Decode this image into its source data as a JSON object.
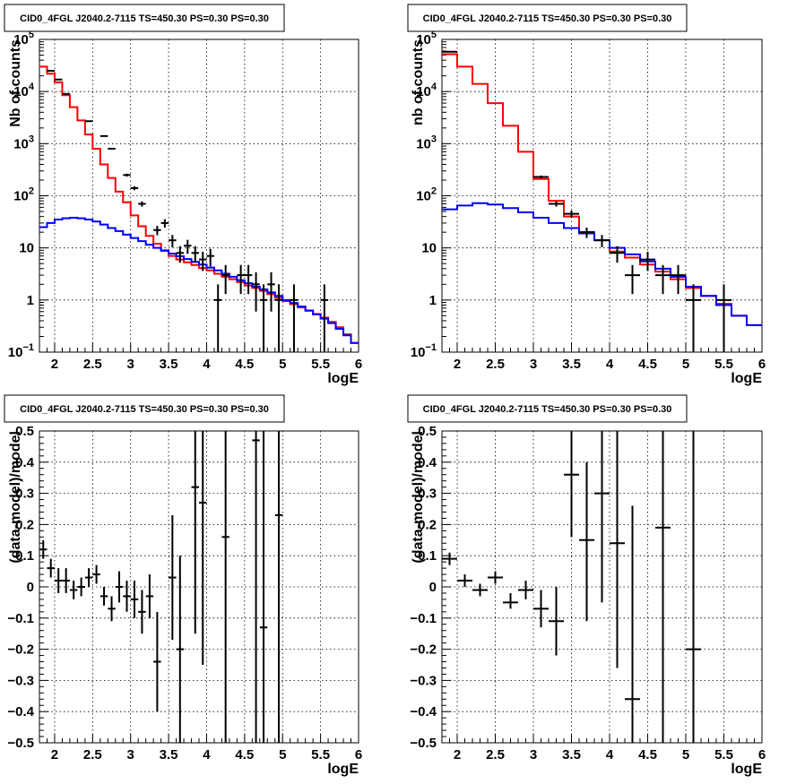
{
  "chart_data": [
    {
      "type": "histogram-log",
      "title": "CID0_4FGL J2040.2-7115 TS=450.30 PS=0.30 PS=0.30",
      "xlabel": "logE",
      "ylabel": "Nb of counts",
      "xlim": [
        1.8,
        6.0
      ],
      "ylim": [
        0.1,
        100000
      ],
      "log_y": true,
      "grid": true,
      "xticks": [
        2,
        2.5,
        3,
        3.5,
        4,
        4.5,
        5,
        5.5,
        6
      ],
      "xtick_labels": [
        "2",
        "2.5",
        "3",
        "3.5",
        "4",
        "4.5",
        "5",
        "5.5",
        "6"
      ],
      "yticks": [
        0.1,
        1,
        10,
        100,
        1000,
        10000,
        100000
      ],
      "ytick_labels": [
        {
          "base": "10",
          "exp": "−1"
        },
        {
          "base": "1",
          "exp": ""
        },
        {
          "base": "10",
          "exp": ""
        },
        {
          "base": "10",
          "exp": "2"
        },
        {
          "base": "10",
          "exp": "3"
        },
        {
          "base": "10",
          "exp": "4"
        },
        {
          "base": "10",
          "exp": "5"
        }
      ],
      "bin_edges": [
        1.8,
        1.9,
        2.0,
        2.1,
        2.2,
        2.3,
        2.4,
        2.5,
        2.6,
        2.7,
        2.8,
        2.9,
        3.0,
        3.1,
        3.2,
        3.3,
        3.4,
        3.5,
        3.6,
        3.7,
        3.8,
        3.9,
        4.0,
        4.1,
        4.2,
        4.3,
        4.4,
        4.5,
        4.6,
        4.7,
        4.8,
        4.9,
        5.0,
        5.1,
        5.2,
        5.3,
        5.4,
        5.5,
        5.6,
        5.7,
        5.8,
        5.9,
        6.0
      ],
      "series": [
        {
          "color": "#ff0000",
          "values": [
            30000,
            22000,
            15000,
            8500,
            5000,
            2800,
            1500,
            800,
            400,
            220,
            120,
            75,
            42,
            26,
            17,
            12,
            9,
            7,
            6,
            5.3,
            4.7,
            4.1,
            3.7,
            3.2,
            2.8,
            2.5,
            2.2,
            1.9,
            1.7,
            1.5,
            1.3,
            1.1,
            0.95,
            0.83,
            0.72,
            0.62,
            0.54,
            0.46,
            0.38,
            0.3,
            0.22,
            0.15
          ]
        },
        {
          "color": "#0000ff",
          "values": [
            25,
            30,
            35,
            37,
            38,
            37,
            35,
            32,
            28,
            24,
            21,
            18,
            15.5,
            13.5,
            11.5,
            10,
            8.8,
            7.8,
            6.9,
            6.1,
            5.4,
            4.8,
            4.2,
            3.7,
            3.2,
            2.8,
            2.4,
            2.1,
            1.8,
            1.6,
            1.4,
            1.2,
            1.0,
            0.88,
            0.75,
            0.63,
            0.53,
            0.44,
            0.36,
            0.28,
            0.21,
            0.15
          ]
        }
      ],
      "data_points": [
        {
          "x": 1.95,
          "xerr": 0.05,
          "y": 25000,
          "ylo": 24840,
          "yhi": 25160
        },
        {
          "x": 2.05,
          "xerr": 0.05,
          "y": 17000,
          "ylo": 16870,
          "yhi": 17130
        },
        {
          "x": 2.15,
          "xerr": 0.05,
          "y": 9000,
          "ylo": 8905,
          "yhi": 9095
        },
        {
          "x": 2.45,
          "xerr": 0.05,
          "y": 2700,
          "ylo": 2648,
          "yhi": 2752
        },
        {
          "x": 2.65,
          "xerr": 0.05,
          "y": 1400,
          "ylo": 1363,
          "yhi": 1437
        },
        {
          "x": 2.75,
          "xerr": 0.05,
          "y": 800,
          "ylo": 772,
          "yhi": 828
        },
        {
          "x": 2.95,
          "xerr": 0.05,
          "y": 250,
          "ylo": 234,
          "yhi": 266
        },
        {
          "x": 3.05,
          "xerr": 0.05,
          "y": 140,
          "ylo": 128,
          "yhi": 152
        },
        {
          "x": 3.15,
          "xerr": 0.05,
          "y": 70,
          "ylo": 62,
          "yhi": 78
        },
        {
          "x": 3.35,
          "xerr": 0.05,
          "y": 22,
          "ylo": 17.5,
          "yhi": 26.5
        },
        {
          "x": 3.45,
          "xerr": 0.05,
          "y": 30,
          "ylo": 24.5,
          "yhi": 35.5
        },
        {
          "x": 3.55,
          "xerr": 0.05,
          "y": 14,
          "ylo": 10.3,
          "yhi": 17.7
        },
        {
          "x": 3.65,
          "xerr": 0.05,
          "y": 8,
          "ylo": 5.2,
          "yhi": 10.8
        },
        {
          "x": 3.75,
          "xerr": 0.05,
          "y": 11,
          "ylo": 7.7,
          "yhi": 14.3
        },
        {
          "x": 3.85,
          "xerr": 0.05,
          "y": 8,
          "ylo": 5.2,
          "yhi": 10.8
        },
        {
          "x": 3.95,
          "xerr": 0.05,
          "y": 6,
          "ylo": 3.6,
          "yhi": 8.4
        },
        {
          "x": 4.05,
          "xerr": 0.05,
          "y": 7,
          "ylo": 4.4,
          "yhi": 9.6
        },
        {
          "x": 4.15,
          "xerr": 0.05,
          "y": 1,
          "ylo": 0.1,
          "yhi": 2
        },
        {
          "x": 4.25,
          "xerr": 0.05,
          "y": 3,
          "ylo": 1.3,
          "yhi": 4.7
        },
        {
          "x": 4.45,
          "xerr": 0.05,
          "y": 3,
          "ylo": 1.3,
          "yhi": 4.7
        },
        {
          "x": 4.55,
          "xerr": 0.05,
          "y": 3,
          "ylo": 1.3,
          "yhi": 4.7
        },
        {
          "x": 4.65,
          "xerr": 0.05,
          "y": 2,
          "ylo": 0.6,
          "yhi": 3.4
        },
        {
          "x": 4.75,
          "xerr": 0.05,
          "y": 1,
          "ylo": 0.1,
          "yhi": 2
        },
        {
          "x": 4.85,
          "xerr": 0.05,
          "y": 2,
          "ylo": 0.6,
          "yhi": 3.4
        },
        {
          "x": 4.95,
          "xerr": 0.05,
          "y": 1,
          "ylo": 0.1,
          "yhi": 2
        },
        {
          "x": 5.15,
          "xerr": 0.05,
          "y": 1,
          "ylo": 0.1,
          "yhi": 2
        },
        {
          "x": 5.55,
          "xerr": 0.05,
          "y": 1,
          "ylo": 0.1,
          "yhi": 2
        }
      ]
    },
    {
      "type": "histogram-log",
      "title": "CID0_4FGL J2040.2-7115 TS=450.30 PS=0.30 PS=0.30",
      "xlabel": "logE",
      "ylabel": "nb of counts",
      "xlim": [
        1.8,
        6.0
      ],
      "ylim": [
        0.1,
        100000
      ],
      "log_y": true,
      "grid": true,
      "xticks": [
        2,
        2.5,
        3,
        3.5,
        4,
        4.5,
        5,
        5.5,
        6
      ],
      "xtick_labels": [
        "2",
        "2.5",
        "3",
        "3.5",
        "4",
        "4.5",
        "5",
        "5.5",
        "6"
      ],
      "yticks": [
        0.1,
        1,
        10,
        100,
        1000,
        10000,
        100000
      ],
      "ytick_labels": [
        {
          "base": "10",
          "exp": "−1"
        },
        {
          "base": "1",
          "exp": ""
        },
        {
          "base": "10",
          "exp": ""
        },
        {
          "base": "10",
          "exp": "2"
        },
        {
          "base": "10",
          "exp": "3"
        },
        {
          "base": "10",
          "exp": "4"
        },
        {
          "base": "10",
          "exp": "5"
        }
      ],
      "bin_edges": [
        1.8,
        2.0,
        2.2,
        2.4,
        2.6,
        2.8,
        3.0,
        3.2,
        3.4,
        3.6,
        3.8,
        4.0,
        4.2,
        4.4,
        4.6,
        4.8,
        5.0,
        5.2,
        5.4,
        5.6,
        5.8,
        6.0
      ],
      "series": [
        {
          "color": "#ff0000",
          "values": [
            52000,
            30000,
            14000,
            6000,
            2200,
            700,
            210,
            80,
            40,
            20,
            14,
            8.5,
            6.5,
            4.8,
            3.5,
            2.5,
            1.7,
            1.2,
            0.85,
            0.5,
            0.33
          ]
        },
        {
          "color": "#0000ff",
          "values": [
            55,
            65,
            72,
            68,
            58,
            48,
            38,
            30,
            24,
            19,
            14,
            10,
            7.5,
            5.5,
            4,
            2.8,
            1.8,
            1.2,
            0.8,
            0.5,
            0.33
          ]
        }
      ],
      "data_points": [
        {
          "x": 1.9,
          "xerr": 0.1,
          "y": 58000,
          "ylo": 57760,
          "yhi": 58240
        },
        {
          "x": 3.1,
          "xerr": 0.1,
          "y": 230,
          "ylo": 215,
          "yhi": 245
        },
        {
          "x": 3.3,
          "xerr": 0.1,
          "y": 70,
          "ylo": 62,
          "yhi": 78
        },
        {
          "x": 3.5,
          "xerr": 0.1,
          "y": 45,
          "ylo": 38,
          "yhi": 52
        },
        {
          "x": 3.7,
          "xerr": 0.1,
          "y": 20,
          "ylo": 15.5,
          "yhi": 24.5
        },
        {
          "x": 3.9,
          "xerr": 0.1,
          "y": 14,
          "ylo": 10.3,
          "yhi": 17.7
        },
        {
          "x": 4.1,
          "xerr": 0.1,
          "y": 8,
          "ylo": 5.2,
          "yhi": 10.8
        },
        {
          "x": 4.3,
          "xerr": 0.1,
          "y": 3,
          "ylo": 1.3,
          "yhi": 4.7
        },
        {
          "x": 4.5,
          "xerr": 0.1,
          "y": 6,
          "ylo": 3.6,
          "yhi": 8.4
        },
        {
          "x": 4.7,
          "xerr": 0.1,
          "y": 3,
          "ylo": 1.3,
          "yhi": 4.7
        },
        {
          "x": 4.9,
          "xerr": 0.1,
          "y": 3,
          "ylo": 1.3,
          "yhi": 4.7
        },
        {
          "x": 5.1,
          "xerr": 0.1,
          "y": 1,
          "ylo": 0.1,
          "yhi": 2
        },
        {
          "x": 5.5,
          "xerr": 0.1,
          "y": 1,
          "ylo": 0.1,
          "yhi": 2
        }
      ]
    },
    {
      "type": "errorbar",
      "title": "CID0_4FGL J2040.2-7115 TS=450.30 PS=0.30 PS=0.30",
      "xlabel": "logE",
      "ylabel": "(data-model)/model",
      "xlim": [
        1.8,
        6.0
      ],
      "ylim": [
        -0.5,
        0.5
      ],
      "log_y": false,
      "grid": true,
      "xticks": [
        2,
        2.5,
        3,
        3.5,
        4,
        4.5,
        5,
        5.5,
        6
      ],
      "xtick_labels": [
        "2",
        "2.5",
        "3",
        "3.5",
        "4",
        "4.5",
        "5",
        "5.5",
        "6"
      ],
      "yticks": [
        -0.5,
        -0.4,
        -0.3,
        -0.2,
        -0.1,
        0,
        0.1,
        0.2,
        0.3,
        0.4,
        0.5
      ],
      "ytick_labels": [
        "−0.5",
        "−0.4",
        "−0.3",
        "−0.2",
        "−0.1",
        "0",
        "0.1",
        "0.2",
        "0.3",
        "0.4",
        "0.5"
      ],
      "data_points": [
        {
          "x": 1.85,
          "xerr": 0.05,
          "y": 0.12,
          "ylo": 0.09,
          "yhi": 0.15
        },
        {
          "x": 1.95,
          "xerr": 0.05,
          "y": 0.06,
          "ylo": 0.03,
          "yhi": 0.09
        },
        {
          "x": 2.05,
          "xerr": 0.05,
          "y": 0.02,
          "ylo": -0.02,
          "yhi": 0.06
        },
        {
          "x": 2.15,
          "xerr": 0.05,
          "y": 0.02,
          "ylo": -0.02,
          "yhi": 0.06
        },
        {
          "x": 2.25,
          "xerr": 0.05,
          "y": -0.01,
          "ylo": -0.04,
          "yhi": 0.02
        },
        {
          "x": 2.35,
          "xerr": 0.05,
          "y": 0.0,
          "ylo": -0.03,
          "yhi": 0.03
        },
        {
          "x": 2.45,
          "xerr": 0.05,
          "y": 0.03,
          "ylo": 0.0,
          "yhi": 0.06
        },
        {
          "x": 2.55,
          "xerr": 0.05,
          "y": 0.04,
          "ylo": 0.01,
          "yhi": 0.07
        },
        {
          "x": 2.65,
          "xerr": 0.05,
          "y": -0.03,
          "ylo": -0.06,
          "yhi": 0.0
        },
        {
          "x": 2.75,
          "xerr": 0.05,
          "y": -0.07,
          "ylo": -0.11,
          "yhi": -0.03
        },
        {
          "x": 2.85,
          "xerr": 0.05,
          "y": 0.0,
          "ylo": -0.05,
          "yhi": 0.05
        },
        {
          "x": 2.95,
          "xerr": 0.05,
          "y": -0.03,
          "ylo": -0.08,
          "yhi": 0.02
        },
        {
          "x": 3.05,
          "xerr": 0.05,
          "y": -0.04,
          "ylo": -0.1,
          "yhi": 0.02
        },
        {
          "x": 3.15,
          "xerr": 0.05,
          "y": -0.08,
          "ylo": -0.15,
          "yhi": -0.01
        },
        {
          "x": 3.25,
          "xerr": 0.05,
          "y": -0.03,
          "ylo": -0.1,
          "yhi": 0.04
        },
        {
          "x": 3.35,
          "xerr": 0.05,
          "y": -0.24,
          "ylo": -0.4,
          "yhi": -0.08
        },
        {
          "x": 3.55,
          "xerr": 0.05,
          "y": 0.03,
          "ylo": -0.17,
          "yhi": 0.23
        },
        {
          "x": 3.65,
          "xerr": 0.05,
          "y": -0.2,
          "ylo": -0.5,
          "yhi": 0.1
        },
        {
          "x": 3.85,
          "xerr": 0.05,
          "y": 0.32,
          "ylo": -0.15,
          "yhi": 0.5
        },
        {
          "x": 3.95,
          "xerr": 0.05,
          "y": 0.27,
          "ylo": -0.25,
          "yhi": 0.5
        },
        {
          "x": 4.25,
          "xerr": 0.05,
          "y": 0.16,
          "ylo": -0.5,
          "yhi": 0.5
        },
        {
          "x": 4.65,
          "xerr": 0.05,
          "y": 0.47,
          "ylo": -0.5,
          "yhi": 0.5
        },
        {
          "x": 4.75,
          "xerr": 0.05,
          "y": -0.13,
          "ylo": -0.5,
          "yhi": 0.5
        },
        {
          "x": 4.95,
          "xerr": 0.05,
          "y": 0.23,
          "ylo": -0.5,
          "yhi": 0.5
        }
      ]
    },
    {
      "type": "errorbar",
      "title": "CID0_4FGL J2040.2-7115 TS=450.30 PS=0.30 PS=0.30",
      "xlabel": "logE",
      "ylabel": "(data-model)/model",
      "xlim": [
        1.8,
        6.0
      ],
      "ylim": [
        -0.5,
        0.5
      ],
      "log_y": false,
      "grid": true,
      "xticks": [
        2,
        2.5,
        3,
        3.5,
        4,
        4.5,
        5,
        5.5,
        6
      ],
      "xtick_labels": [
        "2",
        "2.5",
        "3",
        "3.5",
        "4",
        "4.5",
        "5",
        "5.5",
        "6"
      ],
      "yticks": [
        -0.5,
        -0.4,
        -0.3,
        -0.2,
        -0.1,
        0,
        0.1,
        0.2,
        0.3,
        0.4,
        0.5
      ],
      "ytick_labels": [
        "−0.5",
        "−0.4",
        "−0.3",
        "−0.2",
        "−0.1",
        "0",
        "0.1",
        "0.2",
        "0.3",
        "0.4",
        "0.5"
      ],
      "data_points": [
        {
          "x": 1.9,
          "xerr": 0.1,
          "y": 0.09,
          "ylo": 0.07,
          "yhi": 0.11
        },
        {
          "x": 2.1,
          "xerr": 0.1,
          "y": 0.02,
          "ylo": 0.0,
          "yhi": 0.04
        },
        {
          "x": 2.3,
          "xerr": 0.1,
          "y": -0.01,
          "ylo": -0.03,
          "yhi": 0.01
        },
        {
          "x": 2.5,
          "xerr": 0.1,
          "y": 0.03,
          "ylo": 0.01,
          "yhi": 0.05
        },
        {
          "x": 2.7,
          "xerr": 0.1,
          "y": -0.05,
          "ylo": -0.07,
          "yhi": -0.02
        },
        {
          "x": 2.9,
          "xerr": 0.1,
          "y": -0.01,
          "ylo": -0.04,
          "yhi": 0.02
        },
        {
          "x": 3.1,
          "xerr": 0.1,
          "y": -0.07,
          "ylo": -0.13,
          "yhi": -0.01
        },
        {
          "x": 3.3,
          "xerr": 0.1,
          "y": -0.11,
          "ylo": -0.22,
          "yhi": 0.0
        },
        {
          "x": 3.5,
          "xerr": 0.1,
          "y": 0.36,
          "ylo": 0.16,
          "yhi": 0.5
        },
        {
          "x": 3.7,
          "xerr": 0.1,
          "y": 0.15,
          "ylo": -0.11,
          "yhi": 0.4
        },
        {
          "x": 3.9,
          "xerr": 0.1,
          "y": 0.3,
          "ylo": -0.05,
          "yhi": 0.5
        },
        {
          "x": 4.1,
          "xerr": 0.1,
          "y": 0.14,
          "ylo": -0.26,
          "yhi": 0.5
        },
        {
          "x": 4.3,
          "xerr": 0.1,
          "y": -0.36,
          "ylo": -0.5,
          "yhi": 0.26
        },
        {
          "x": 4.7,
          "xerr": 0.1,
          "y": 0.19,
          "ylo": -0.5,
          "yhi": 0.5
        },
        {
          "x": 5.1,
          "xerr": 0.1,
          "y": -0.2,
          "ylo": -0.5,
          "yhi": 0.5
        }
      ]
    }
  ]
}
